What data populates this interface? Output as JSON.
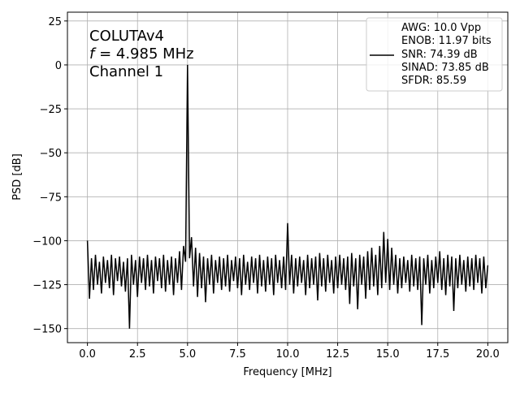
{
  "chart_data": {
    "type": "line",
    "title": "",
    "xlabel": "Frequency [MHz]",
    "ylabel": "PSD [dB]",
    "xlim": [
      -1,
      21
    ],
    "ylim": [
      -158,
      30
    ],
    "grid": true,
    "xticks": [
      0,
      2.5,
      5,
      7.5,
      10,
      12.5,
      15,
      17.5,
      20
    ],
    "xtick_labels": [
      "0.0",
      "2.5",
      "5.0",
      "7.5",
      "10.0",
      "12.5",
      "15.0",
      "17.5",
      "20.0"
    ],
    "yticks": [
      25,
      0,
      -25,
      -50,
      -75,
      -100,
      -125,
      -150
    ],
    "ytick_labels": [
      "25",
      "0",
      "−25",
      "−50",
      "−75",
      "−100",
      "−125",
      "−150"
    ],
    "annotation": {
      "line1": "COLUTAv4",
      "line2_var": "f",
      "line2_rest": " = 4.985 MHz",
      "line3": "Channel 1"
    },
    "legend": {
      "placement": "upper-right",
      "entries": [
        "AWG: 10.0 Vpp",
        "ENOB: 11.97 bits",
        "SNR: 74.39 dB",
        "SINAD: 73.85 dB",
        "SFDR: 85.59"
      ]
    },
    "line_color": "#000000",
    "series": [
      {
        "x_start": 0,
        "x_step": 0.1,
        "values": [
          -100,
          -133,
          -110,
          -128,
          -108,
          -125,
          -112,
          -130,
          -109,
          -124,
          -111,
          -127,
          -108,
          -131,
          -110,
          -123,
          -109,
          -126,
          -112,
          -129,
          -110,
          -150,
          -108,
          -125,
          -111,
          -132,
          -109,
          -124,
          -110,
          -128,
          -108,
          -126,
          -111,
          -130,
          -109,
          -123,
          -110,
          -127,
          -108,
          -129,
          -111,
          -125,
          -109,
          -131,
          -110,
          -124,
          -106,
          -128,
          -103,
          -112,
          0,
          -110,
          -98,
          -126,
          -104,
          -132,
          -107,
          -127,
          -109,
          -135,
          -110,
          -125,
          -108,
          -130,
          -111,
          -124,
          -109,
          -128,
          -110,
          -126,
          -108,
          -129,
          -111,
          -123,
          -109,
          -127,
          -110,
          -131,
          -108,
          -125,
          -112,
          -128,
          -109,
          -124,
          -110,
          -130,
          -108,
          -126,
          -111,
          -129,
          -109,
          -125,
          -110,
          -131,
          -108,
          -124,
          -111,
          -127,
          -109,
          -128,
          -90,
          -125,
          -108,
          -130,
          -110,
          -126,
          -109,
          -124,
          -111,
          -131,
          -108,
          -127,
          -110,
          -125,
          -109,
          -134,
          -107,
          -126,
          -110,
          -129,
          -108,
          -124,
          -111,
          -130,
          -109,
          -127,
          -108,
          -125,
          -110,
          -128,
          -109,
          -136,
          -107,
          -126,
          -110,
          -139,
          -108,
          -125,
          -109,
          -133,
          -106,
          -128,
          -104,
          -126,
          -108,
          -131,
          -103,
          -127,
          -95,
          -124,
          -99,
          -128,
          -104,
          -125,
          -108,
          -130,
          -110,
          -127,
          -109,
          -124,
          -111,
          -129,
          -108,
          -126,
          -110,
          -128,
          -109,
          -148,
          -110,
          -125,
          -108,
          -130,
          -111,
          -127,
          -109,
          -124,
          -106,
          -128,
          -110,
          -131,
          -108,
          -126,
          -109,
          -140,
          -110,
          -127,
          -108,
          -125,
          -111,
          -129,
          -109,
          -126,
          -110,
          -128,
          -108,
          -124,
          -110,
          -130,
          -109,
          -127,
          -114
        ]
      }
    ]
  }
}
